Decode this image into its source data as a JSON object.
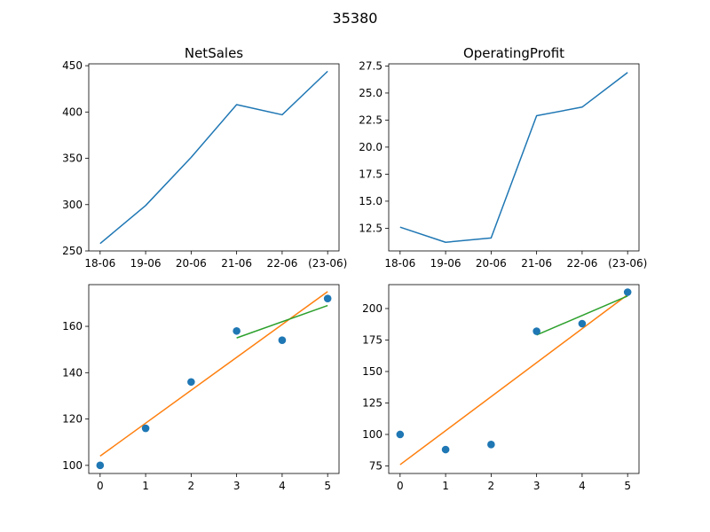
{
  "figure": {
    "suptitle": "35380"
  },
  "colors": {
    "c0": "#1f77b4",
    "c1": "#ff7f0e",
    "c2": "#2ca02c",
    "axis": "#000000"
  },
  "chart_data": [
    {
      "type": "line",
      "title": "NetSales",
      "categories": [
        "18-06",
        "19-06",
        "20-06",
        "21-06",
        "22-06",
        "(23-06)"
      ],
      "series": [
        {
          "values": [
            258,
            299,
            351,
            408,
            397,
            444
          ]
        }
      ],
      "ylim": [
        250,
        452
      ],
      "yticks": [
        250,
        300,
        350,
        400,
        450
      ],
      "ytick_labels": [
        "250",
        "300",
        "350",
        "400",
        "450"
      ]
    },
    {
      "type": "line",
      "title": "OperatingProfit",
      "categories": [
        "18-06",
        "19-06",
        "20-06",
        "21-06",
        "22-06",
        "(23-06)"
      ],
      "series": [
        {
          "values": [
            12.6,
            11.2,
            11.6,
            22.9,
            23.7,
            26.9
          ]
        }
      ],
      "ylim": [
        10.4,
        27.7
      ],
      "yticks": [
        12.5,
        15,
        17.5,
        20,
        22.5,
        25,
        27.5
      ],
      "ytick_labels": [
        "12.5",
        "15.0",
        "17.5",
        "20.0",
        "22.5",
        "25.0",
        "27.5"
      ]
    },
    {
      "type": "scatter",
      "title": "",
      "xlim": [
        -0.25,
        5.25
      ],
      "ylim": [
        96.5,
        178
      ],
      "xticks": [
        0,
        1,
        2,
        3,
        4,
        5
      ],
      "xtick_labels": [
        "0",
        "1",
        "2",
        "3",
        "4",
        "5"
      ],
      "yticks": [
        100,
        120,
        140,
        160
      ],
      "ytick_labels": [
        "100",
        "120",
        "140",
        "160"
      ],
      "points": {
        "x": [
          0,
          1,
          2,
          3,
          4,
          5
        ],
        "y": [
          100,
          116,
          136,
          158,
          154,
          172
        ]
      },
      "lines": [
        {
          "color": "#ff7f0e",
          "x": [
            0,
            5
          ],
          "y": [
            104,
            175
          ]
        },
        {
          "color": "#2ca02c",
          "x": [
            3,
            5
          ],
          "y": [
            155,
            169
          ]
        }
      ]
    },
    {
      "type": "scatter",
      "title": "",
      "xlim": [
        -0.25,
        5.25
      ],
      "ylim": [
        69,
        219
      ],
      "xticks": [
        0,
        1,
        2,
        3,
        4,
        5
      ],
      "xtick_labels": [
        "0",
        "1",
        "2",
        "3",
        "4",
        "5"
      ],
      "yticks": [
        75,
        100,
        125,
        150,
        175,
        200
      ],
      "ytick_labels": [
        "75",
        "100",
        "125",
        "150",
        "175",
        "200"
      ],
      "points": {
        "x": [
          0,
          1,
          2,
          3,
          4,
          5
        ],
        "y": [
          100,
          88,
          92,
          182,
          188,
          213
        ]
      },
      "lines": [
        {
          "color": "#ff7f0e",
          "x": [
            0,
            5
          ],
          "y": [
            76,
            211
          ]
        },
        {
          "color": "#2ca02c",
          "x": [
            3,
            5
          ],
          "y": [
            179,
            210
          ]
        }
      ]
    }
  ]
}
